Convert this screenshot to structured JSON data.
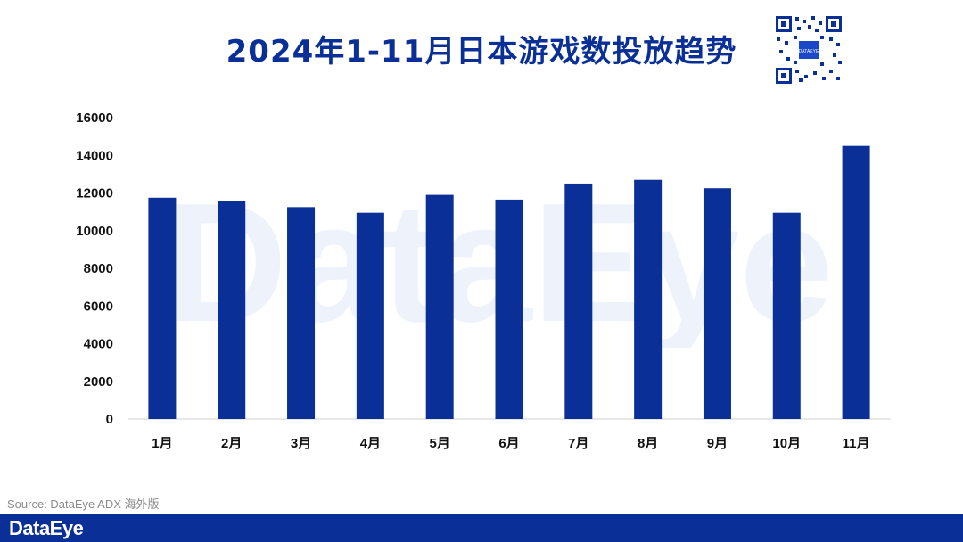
{
  "title": "2024年1-11月日本游戏数投放趋势",
  "source": "Source: DataEye ADX 海外版",
  "brand": "DataEye",
  "watermark_text": "DataEye",
  "qr_center_label": "DATAEYE",
  "colors": {
    "bar": "#0a2f96",
    "title": "#0a2f96",
    "footer": "#0a2f96",
    "watermark": "#eef2fb"
  },
  "chart_data": {
    "type": "bar",
    "title": "",
    "xlabel": "",
    "ylabel": "",
    "categories": [
      "1月",
      "2月",
      "3月",
      "4月",
      "5月",
      "6月",
      "7月",
      "8月",
      "9月",
      "10月",
      "11月"
    ],
    "values": [
      11750,
      11550,
      11250,
      10950,
      11900,
      11650,
      12500,
      12700,
      12250,
      10950,
      14500
    ],
    "ylim": [
      0,
      16000
    ],
    "yticks": [
      0,
      2000,
      4000,
      6000,
      8000,
      10000,
      12000,
      14000,
      16000
    ],
    "grid": false,
    "legend": "none"
  }
}
